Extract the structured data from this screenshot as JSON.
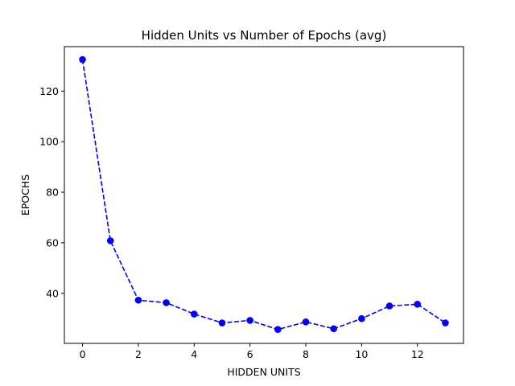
{
  "chart_data": {
    "type": "line",
    "title": "Hidden Units vs Number of Epochs (avg)",
    "xlabel": "HIDDEN UNITS",
    "ylabel": "EPOCHS",
    "x": [
      0,
      1,
      2,
      3,
      4,
      5,
      6,
      7,
      8,
      9,
      10,
      11,
      12,
      13
    ],
    "series": [
      {
        "values": [
          132.5,
          60.8,
          37.3,
          36.3,
          31.8,
          28.3,
          29.3,
          25.7,
          28.7,
          26.0,
          30.0,
          35.0,
          35.7,
          28.3
        ],
        "color": "#0000ff",
        "line_style": "dashed",
        "marker": "circle"
      }
    ],
    "xlim": [
      -0.65,
      13.65
    ],
    "ylim": [
      20.2,
      137.6
    ],
    "xticks": [
      0,
      2,
      4,
      6,
      8,
      10,
      12
    ],
    "yticks": [
      40,
      60,
      80,
      100,
      120
    ],
    "grid": false,
    "legend": "none"
  }
}
